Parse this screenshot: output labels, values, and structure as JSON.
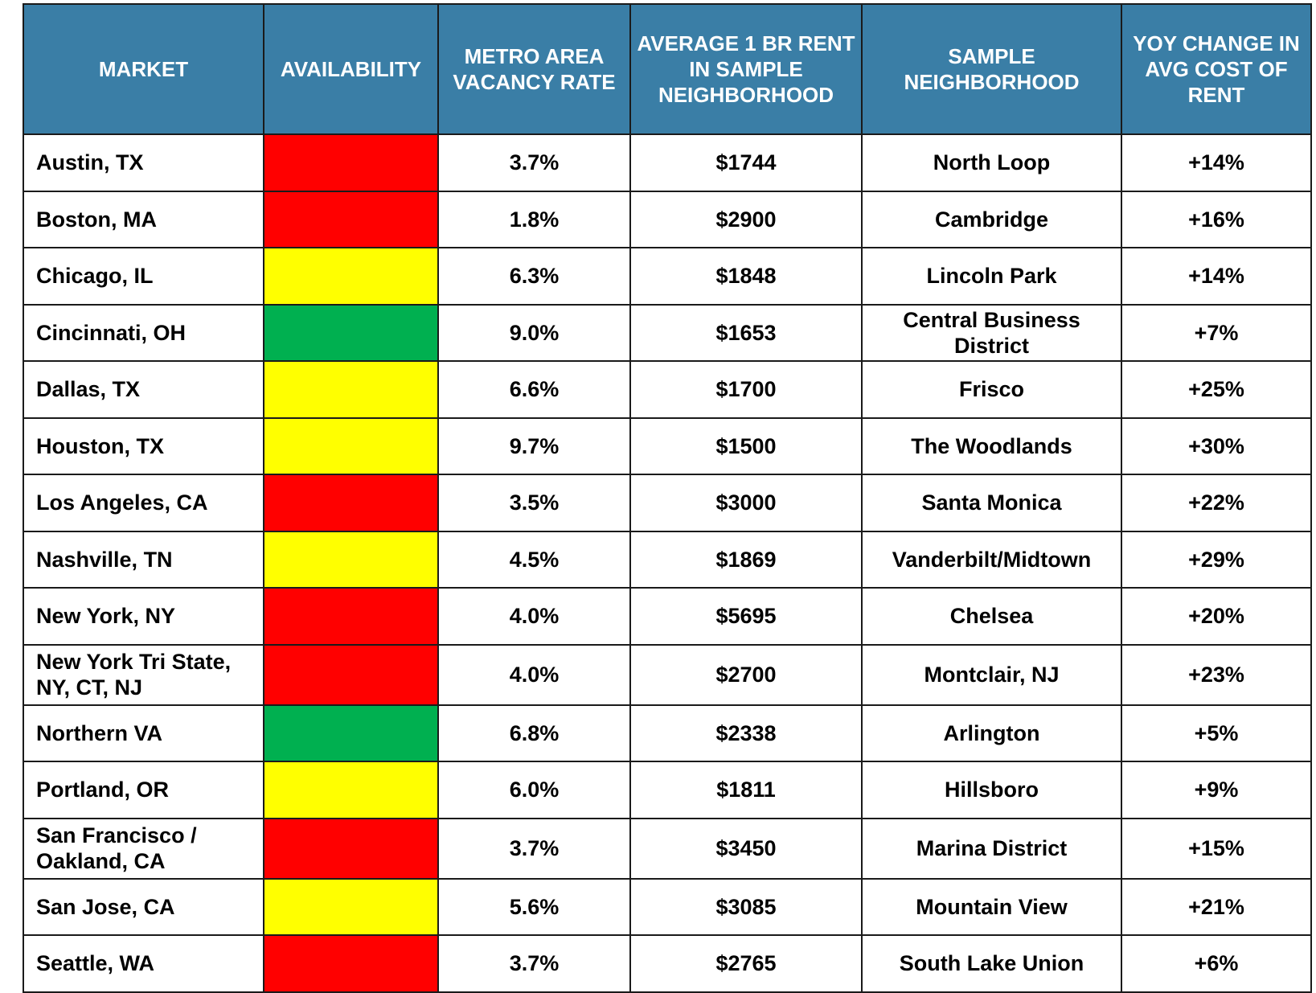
{
  "chart_data": {
    "type": "table",
    "columns": [
      "MARKET",
      "AVAILABILITY",
      "METRO AREA VACANCY RATE",
      "AVERAGE 1 BR RENT IN SAMPLE NEIGHBORHOOD",
      "SAMPLE NEIGHBORHOOD",
      "YOY CHANGE IN AVG COST OF RENT"
    ],
    "rows": [
      {
        "market": "Austin, TX",
        "availability": "red",
        "vacancy": "3.7%",
        "rent": "$1744",
        "neighborhood": "North Loop",
        "yoy": "+14%"
      },
      {
        "market": "Boston, MA",
        "availability": "red",
        "vacancy": "1.8%",
        "rent": "$2900",
        "neighborhood": "Cambridge",
        "yoy": "+16%"
      },
      {
        "market": "Chicago, IL",
        "availability": "yellow",
        "vacancy": "6.3%",
        "rent": "$1848",
        "neighborhood": "Lincoln Park",
        "yoy": "+14%"
      },
      {
        "market": "Cincinnati, OH",
        "availability": "green",
        "vacancy": "9.0%",
        "rent": "$1653",
        "neighborhood": "Central Business District",
        "yoy": "+7%"
      },
      {
        "market": "Dallas, TX",
        "availability": "yellow",
        "vacancy": "6.6%",
        "rent": "$1700",
        "neighborhood": "Frisco",
        "yoy": "+25%"
      },
      {
        "market": "Houston, TX",
        "availability": "yellow",
        "vacancy": "9.7%",
        "rent": "$1500",
        "neighborhood": "The Woodlands",
        "yoy": "+30%"
      },
      {
        "market": "Los Angeles, CA",
        "availability": "red",
        "vacancy": "3.5%",
        "rent": "$3000",
        "neighborhood": "Santa Monica",
        "yoy": "+22%"
      },
      {
        "market": "Nashville, TN",
        "availability": "yellow",
        "vacancy": "4.5%",
        "rent": "$1869",
        "neighborhood": "Vanderbilt/Midtown",
        "yoy": "+29%"
      },
      {
        "market": "New York, NY",
        "availability": "red",
        "vacancy": "4.0%",
        "rent": "$5695",
        "neighborhood": "Chelsea",
        "yoy": "+20%"
      },
      {
        "market": "New York Tri State, NY, CT, NJ",
        "availability": "red",
        "vacancy": "4.0%",
        "rent": "$2700",
        "neighborhood": "Montclair, NJ",
        "yoy": "+23%"
      },
      {
        "market": "Northern VA",
        "availability": "green",
        "vacancy": "6.8%",
        "rent": "$2338",
        "neighborhood": "Arlington",
        "yoy": "+5%"
      },
      {
        "market": "Portland, OR",
        "availability": "yellow",
        "vacancy": "6.0%",
        "rent": "$1811",
        "neighborhood": "Hillsboro",
        "yoy": "+9%"
      },
      {
        "market": "San Francisco / Oakland, CA",
        "availability": "red",
        "vacancy": "3.7%",
        "rent": "$3450",
        "neighborhood": "Marina District",
        "yoy": "+15%"
      },
      {
        "market": "San Jose, CA",
        "availability": "yellow",
        "vacancy": "5.6%",
        "rent": "$3085",
        "neighborhood": "Mountain View",
        "yoy": "+21%"
      },
      {
        "market": "Seattle, WA",
        "availability": "red",
        "vacancy": "3.7%",
        "rent": "$2765",
        "neighborhood": "South Lake Union",
        "yoy": "+6%"
      }
    ]
  },
  "colors": {
    "header_bg": "#3a7ea6",
    "header_text": "#ffffff",
    "border": "#1a1a1a",
    "red": "#ff0000",
    "yellow": "#ffff00",
    "green": "#00b050"
  }
}
